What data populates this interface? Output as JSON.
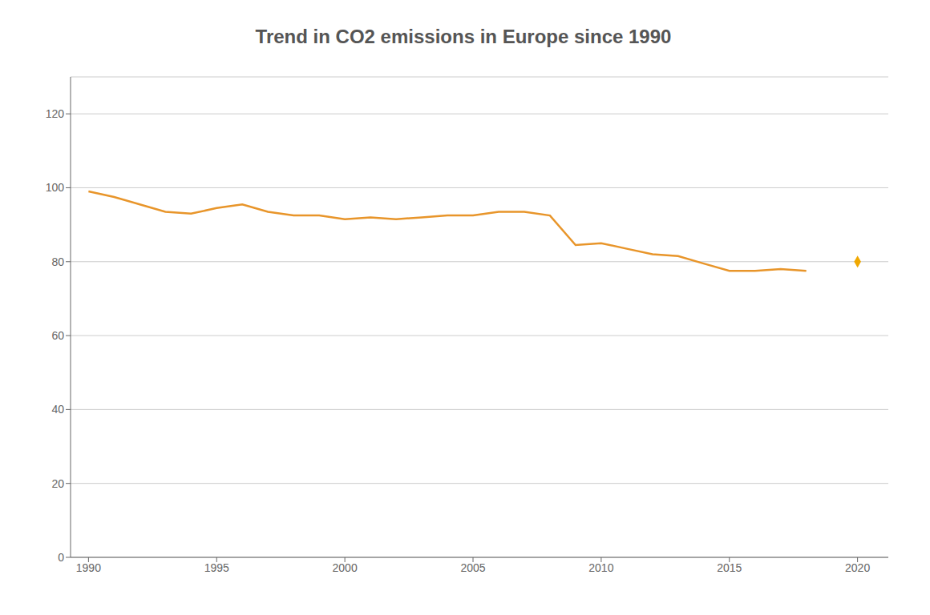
{
  "chart_data": {
    "type": "line",
    "title": "Trend in CO2 emissions in Europe since 1990",
    "x": [
      1990,
      1991,
      1992,
      1993,
      1994,
      1995,
      1996,
      1997,
      1998,
      1999,
      2000,
      2001,
      2002,
      2003,
      2004,
      2005,
      2006,
      2007,
      2008,
      2009,
      2010,
      2011,
      2012,
      2013,
      2014,
      2015,
      2016,
      2017,
      2018,
      2020
    ],
    "series": [
      {
        "type": "line",
        "color": "#E8952A",
        "values": [
          99.0,
          97.5,
          95.5,
          93.5,
          93.0,
          94.5,
          95.5,
          93.5,
          92.5,
          92.5,
          91.5,
          92.0,
          91.5,
          92.0,
          92.5,
          92.5,
          93.5,
          93.5,
          92.5,
          84.5,
          85.0,
          83.5,
          82.0,
          81.5,
          79.5,
          77.5,
          77.5,
          78.0,
          77.5,
          null
        ]
      },
      {
        "type": "scatter",
        "color": "#F0A800",
        "marker": "diamond",
        "values": [
          null,
          null,
          null,
          null,
          null,
          null,
          null,
          null,
          null,
          null,
          null,
          null,
          null,
          null,
          null,
          null,
          null,
          null,
          null,
          null,
          null,
          null,
          null,
          null,
          null,
          null,
          null,
          null,
          null,
          80.0
        ]
      }
    ],
    "xlim": [
      1989.3,
      2021.2
    ],
    "xticks": [
      1990,
      1995,
      2000,
      2005,
      2010,
      2015,
      2020
    ],
    "ylim": [
      0,
      130
    ],
    "yticks": [
      0,
      20,
      40,
      60,
      80,
      100,
      120
    ],
    "grid": true
  }
}
